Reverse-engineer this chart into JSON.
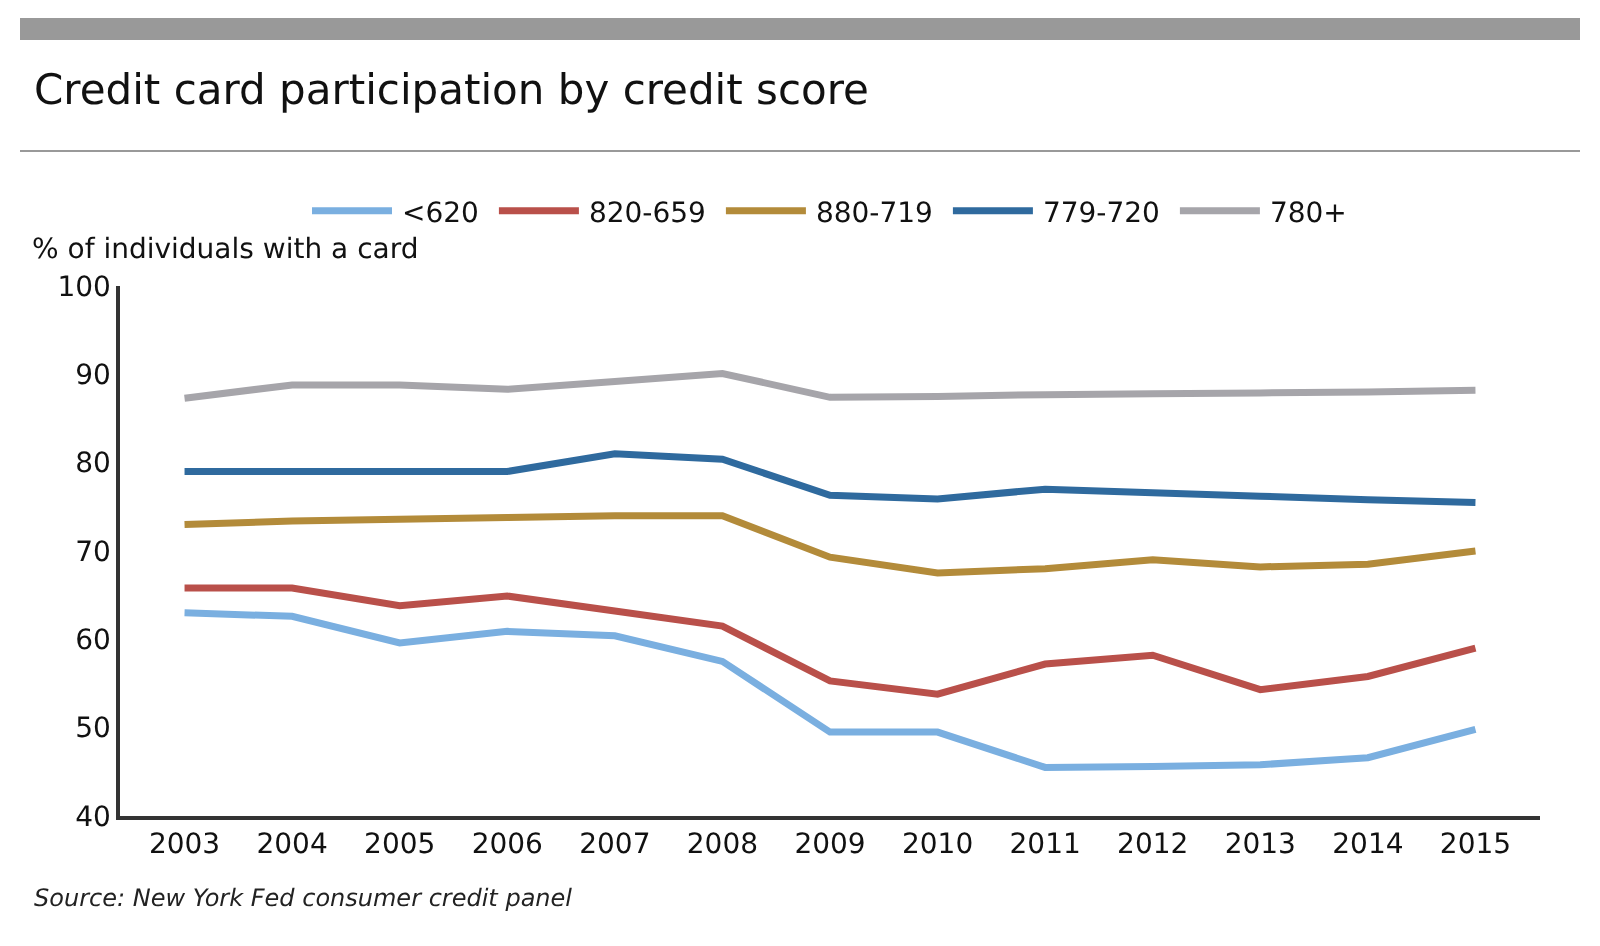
{
  "chart_data": {
    "type": "line",
    "title": "Credit card participation by credit score",
    "ylabel": "% of individuals with a card",
    "categories": [
      "2003",
      "2004",
      "2005",
      "2006",
      "2007",
      "2008",
      "2009",
      "2010",
      "2011",
      "2012",
      "2013",
      "2014",
      "2015"
    ],
    "series": [
      {
        "name": "<620",
        "color": "#7aafe0",
        "values": [
          63,
          62.6,
          59.6,
          60.9,
          60.4,
          57.5,
          49.5,
          49.5,
          45.5,
          45.6,
          45.8,
          46.6,
          49.8
        ]
      },
      {
        "name": "820-659",
        "color": "#b9504a",
        "values": [
          65.8,
          65.8,
          63.8,
          64.9,
          63.2,
          61.5,
          55.3,
          53.8,
          57.2,
          58.2,
          54.3,
          55.8,
          59
        ]
      },
      {
        "name": "880-719",
        "color": "#b38b3a",
        "values": [
          73,
          73.4,
          73.6,
          73.8,
          74,
          74,
          69.3,
          67.5,
          68,
          69,
          68.2,
          68.5,
          70
        ]
      },
      {
        "name": "779-720",
        "color": "#2f6a9e",
        "values": [
          79,
          79,
          79,
          79,
          81,
          80.4,
          76.3,
          75.9,
          77,
          76.6,
          76.2,
          75.8,
          75.5
        ]
      },
      {
        "name": "780+",
        "color": "#a6a5aa",
        "values": [
          87.3,
          88.8,
          88.8,
          88.3,
          89.2,
          90.1,
          87.4,
          87.5,
          87.7,
          87.8,
          87.9,
          88,
          88.2
        ]
      }
    ],
    "ylim": [
      40,
      100
    ],
    "yticks": [
      40,
      50,
      60,
      70,
      80,
      90,
      100
    ],
    "grid": false,
    "legend": "top",
    "line_style": "solid",
    "marker": "none",
    "annotations": [
      "Source: New York Fed consumer credit panel"
    ]
  }
}
